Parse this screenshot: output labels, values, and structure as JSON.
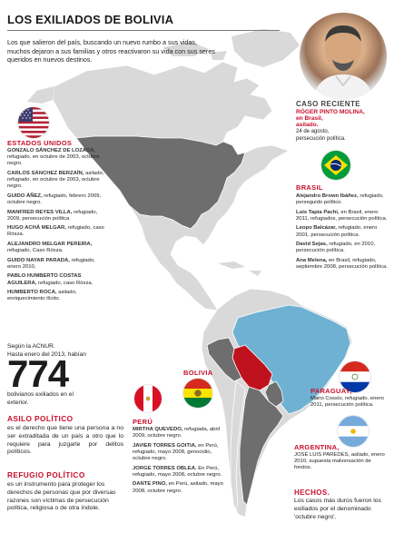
{
  "title": "LOS EXILIADOS DE BOLIVIA",
  "intro": "Los que salieron del país, buscando un nuevo rumbo a sus vidas, muchos dejaron a sus familias y otros reactivaron su vida con sus seres queridos en nuevos destinos.",
  "recent_case": {
    "heading": "CASO RECIENTE",
    "name": "RÓGER PINTO MOLINA,",
    "line1": "en Brasil,",
    "line2": "asilado.",
    "detail": "24 de agosto, persecución política."
  },
  "usa": {
    "label": "ESTADOS UNIDOS",
    "entries": [
      {
        "name": "GONZALO SÁNCHEZ DE LOZADA,",
        "text": "refugiado, en octubre de 2003, octubre negro."
      },
      {
        "name": "CARLOS SÁNCHEZ BERZAÍN,",
        "text": "asilado, refugiado, en octubre de 2003, octubre negro."
      },
      {
        "name": "GUIDO ÁÑEZ,",
        "text": "refugiado, febrero 2009, octubre negro."
      },
      {
        "name": "MANFRED REYES VILLA,",
        "text": "refugiado, 2009, persecución política"
      },
      {
        "name": "HUGO ACHÁ MELGAR,",
        "text": "refugiado, caso Rósza."
      },
      {
        "name": "ALEJANDRO MELGAR PEREIRA,",
        "text": "refugiado, Caso Rósza."
      },
      {
        "name": "GUIDO NAYAR PARADA,",
        "text": "refugiado, enero 2010,"
      },
      {
        "name": "PABLO HUMBERTO COSTAS AGUILERA,",
        "text": "refugiado, caso Rósza."
      },
      {
        "name": "HUMBERTO ROCA,",
        "text": "asilado, enriquecimiento ilícito."
      }
    ]
  },
  "brasil": {
    "label": "BRASIL",
    "entries": [
      {
        "name": "Alejandro Brown Ibáñez,",
        "text": "refugiado, perseguido político."
      },
      {
        "name": "Luis Tapia Pachi,",
        "text": "en Brasil, enero 2011, refugiados, persecución política."
      },
      {
        "name": "Leopo Balcázar,",
        "text": "refugiado, enero 2001, persecución política."
      },
      {
        "name": "David Sejas,",
        "text": "refugiado, en 2010, persecución política."
      },
      {
        "name": "Ana Melena,",
        "text": "en Brasil, refugiado, septiembre 2008, persecución política."
      }
    ]
  },
  "paraguay": {
    "label": "PARAGUAY,",
    "entry": "Mario Cossío, refugiado, enero 2011, persecución política."
  },
  "argentina": {
    "label": "ARGENTINA,",
    "entry": "JOSÉ LUIS PAREDES, asilado, enero 2010, supuesta malversación de fondos."
  },
  "bolivia": {
    "label": "BOLIVIA"
  },
  "peru": {
    "label": "PERÚ",
    "entries": [
      {
        "name": "MIRTHA QUEVEDO,",
        "text": "refugiada, abril 2009, octubre negro."
      },
      {
        "name": "JAVIER TORRES GOITIA,",
        "text": "en Perú, refugiado, mayo 2008, genocidio, octubre negro."
      },
      {
        "name": "JORGE TORRES OBLEA.",
        "text": "En Perú, refugiado, mayo 2008, octubre negro."
      },
      {
        "name": "DANTE PINO,",
        "text": "en Perú, asilado, mayo 2008, octubre negro."
      }
    ]
  },
  "acnur": {
    "line1": "Según la ACNUR.",
    "line2": "Hasta enero del 2013, habían",
    "number": "774",
    "line3": "bolivianos exiliados en el exterior."
  },
  "asilo": {
    "heading": "ASILO POLÍTICO",
    "text": "es el derecho que tiene una persona a no ser extraditada de un país a otro que lo requiere para juzgarle por delitos políticos."
  },
  "refugio": {
    "heading": "REFUGIO POLÍTICO",
    "text": "es un instrumento para proteger los derechos de personas que por diversas razones son víctimas de persecución política, religiosa o de otra índole."
  },
  "hechos": {
    "heading": "HECHOS.",
    "text": "Los casos más duros fueron los exiliados por el denominado 'octubre negro'."
  },
  "colors": {
    "accent_red": "#c8102e",
    "map_light": "#d9d9d9",
    "map_dark": "#6e6e6e",
    "brazil_blue": "#6fb1d2",
    "bolivia_red": "#c0121e"
  }
}
